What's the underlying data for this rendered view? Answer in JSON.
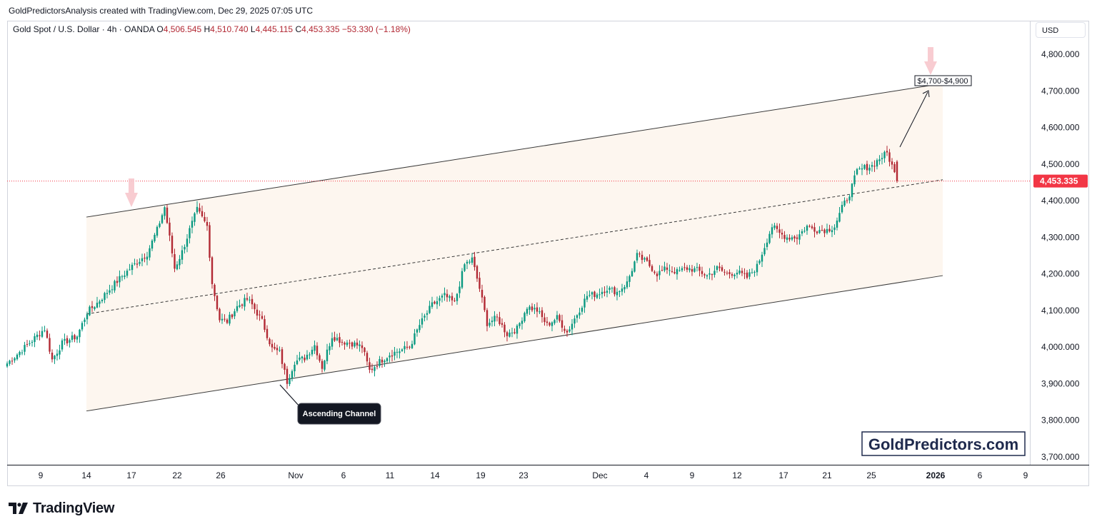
{
  "header": {
    "attribution": "GoldPredictorsAnalysis created with TradingView.com, Dec 29, 2025 07:05 UTC"
  },
  "legend": {
    "symbol": "Gold Spot / U.S. Dollar · 4h · OANDA",
    "open_label": "O",
    "open": "4,506.545",
    "high_label": "H",
    "high": "4,510.740",
    "low_label": "L",
    "low": "4,445.115",
    "close_label": "C",
    "close": "4,453.335",
    "change": "−53.330 (−1.18%)"
  },
  "currency_button": "USD",
  "watermark": "GoldPredictors.com",
  "footer_logo": "TradingView",
  "annotations": {
    "channel_label": "Ascending Channel",
    "target_label": "$4,700-$4,900"
  },
  "colors": {
    "up": "#089981",
    "down": "#b22833",
    "price_tag": "#f23645",
    "channel_fill": "#fdf6ef",
    "arrow_pink": "#f7c6cc"
  },
  "icons": [
    "tradingview-logo-icon",
    "down-arrow-marker-icon"
  ],
  "chart_data": {
    "type": "candlestick",
    "title": "Gold Spot / U.S. Dollar · 4h · OANDA",
    "ylim": [
      3680,
      4880
    ],
    "y_ticks": [
      "4,800.000",
      "4,700.000",
      "4,600.000",
      "4,500.000",
      "4,400.000",
      "4,300.000",
      "4,200.000",
      "4,100.000",
      "4,000.000",
      "3,900.000",
      "3,800.000",
      "3,700.000"
    ],
    "x_ticks": [
      "9",
      "14",
      "17",
      "22",
      "26",
      "Nov",
      "6",
      "11",
      "14",
      "19",
      "23",
      "Dec",
      "4",
      "9",
      "12",
      "17",
      "21",
      "25",
      "2026",
      "6",
      "9"
    ],
    "last_price": "4,453.335",
    "channel": {
      "upper_start": 4355,
      "upper_end": 4720,
      "lower_start": 3825,
      "lower_end": 4195,
      "mid_start": 4090,
      "mid_end": 4457
    },
    "anchors": [
      [
        0,
        3955
      ],
      [
        8,
        4005
      ],
      [
        15,
        4050
      ],
      [
        18,
        3965
      ],
      [
        22,
        4010
      ],
      [
        28,
        4030
      ],
      [
        32,
        4095
      ],
      [
        36,
        4120
      ],
      [
        44,
        4180
      ],
      [
        50,
        4220
      ],
      [
        56,
        4255
      ],
      [
        60,
        4320
      ],
      [
        63,
        4382
      ],
      [
        67,
        4215
      ],
      [
        70,
        4260
      ],
      [
        73,
        4320
      ],
      [
        76,
        4375
      ],
      [
        80,
        4330
      ],
      [
        82,
        4175
      ],
      [
        85,
        4075
      ],
      [
        88,
        4070
      ],
      [
        92,
        4110
      ],
      [
        96,
        4130
      ],
      [
        98,
        4115
      ],
      [
        102,
        4070
      ],
      [
        106,
        3995
      ],
      [
        109,
        3985
      ],
      [
        112,
        3905
      ],
      [
        115,
        3960
      ],
      [
        119,
        3970
      ],
      [
        123,
        4005
      ],
      [
        126,
        3945
      ],
      [
        130,
        4030
      ],
      [
        134,
        4015
      ],
      [
        138,
        4010
      ],
      [
        142,
        4000
      ],
      [
        145,
        3935
      ],
      [
        149,
        3960
      ],
      [
        153,
        3980
      ],
      [
        157,
        3990
      ],
      [
        161,
        4000
      ],
      [
        165,
        4060
      ],
      [
        170,
        4115
      ],
      [
        175,
        4140
      ],
      [
        179,
        4120
      ],
      [
        183,
        4225
      ],
      [
        186,
        4240
      ],
      [
        189,
        4160
      ],
      [
        192,
        4065
      ],
      [
        196,
        4080
      ],
      [
        200,
        4035
      ],
      [
        204,
        4050
      ],
      [
        208,
        4110
      ],
      [
        212,
        4100
      ],
      [
        216,
        4060
      ],
      [
        220,
        4080
      ],
      [
        224,
        4040
      ],
      [
        228,
        4090
      ],
      [
        232,
        4140
      ],
      [
        236,
        4145
      ],
      [
        240,
        4160
      ],
      [
        244,
        4150
      ],
      [
        248,
        4175
      ],
      [
        252,
        4250
      ],
      [
        256,
        4230
      ],
      [
        260,
        4200
      ],
      [
        264,
        4215
      ],
      [
        268,
        4205
      ],
      [
        272,
        4215
      ],
      [
        276,
        4210
      ],
      [
        280,
        4195
      ],
      [
        284,
        4215
      ],
      [
        288,
        4200
      ],
      [
        292,
        4205
      ],
      [
        296,
        4190
      ],
      [
        300,
        4220
      ],
      [
        303,
        4275
      ],
      [
        306,
        4330
      ],
      [
        309,
        4310
      ],
      [
        312,
        4300
      ],
      [
        316,
        4300
      ],
      [
        320,
        4330
      ],
      [
        324,
        4320
      ],
      [
        328,
        4320
      ],
      [
        331,
        4330
      ],
      [
        334,
        4380
      ],
      [
        337,
        4420
      ],
      [
        340,
        4480
      ],
      [
        343,
        4490
      ],
      [
        346,
        4495
      ],
      [
        349,
        4515
      ],
      [
        352,
        4530
      ],
      [
        354,
        4495
      ],
      [
        356,
        4453
      ]
    ],
    "series_start_date": "2025-10-06 (approx.)",
    "target_range": "$4,700-$4,900"
  }
}
